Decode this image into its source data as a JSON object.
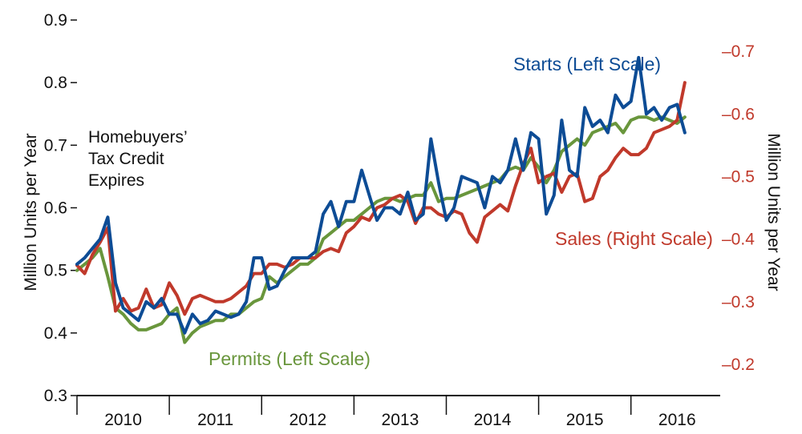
{
  "chart_data": {
    "type": "line",
    "title": "",
    "xlabel": "",
    "ylabel_left": "Million Units per Year",
    "ylabel_right": "Million Units per Year",
    "ylim_left": [
      0.3,
      0.9
    ],
    "yticks_left": [
      0.3,
      0.4,
      0.5,
      0.6,
      0.7,
      0.8,
      0.9
    ],
    "ytick_labels_left": [
      "0.3",
      "0.4",
      "0.5",
      "0.6",
      "0.7",
      "0.8",
      "0.9"
    ],
    "ylim_right": [
      0.15,
      0.75
    ],
    "yticks_right": [
      0.2,
      0.3,
      0.4,
      0.5,
      0.6,
      0.7
    ],
    "ytick_labels_right": [
      "–0.2",
      "–0.3",
      "–0.4",
      "–0.5",
      "–0.6",
      "–0.7"
    ],
    "x_start_month_index": 0,
    "x_end_month_index": 83.6,
    "year_labels": [
      "2010",
      "2011",
      "2012",
      "2013",
      "2014",
      "2015",
      "2016"
    ],
    "annotation": [
      "Homebuyers’",
      "Tax Credit",
      "Expires"
    ],
    "colors": {
      "starts": "#0d4c95",
      "permits": "#69963c",
      "sales": "#c0392b",
      "axis": "#111111"
    },
    "series": [
      {
        "name": "Starts (Left Scale)",
        "key": "starts",
        "axis": "left",
        "month_index_start": 0,
        "values": [
          0.51,
          0.52,
          0.535,
          0.55,
          0.585,
          0.48,
          0.44,
          0.43,
          0.42,
          0.45,
          0.44,
          0.455,
          0.43,
          0.43,
          0.4,
          0.43,
          0.415,
          0.42,
          0.435,
          0.43,
          0.425,
          0.43,
          0.45,
          0.52,
          0.52,
          0.47,
          0.475,
          0.5,
          0.52,
          0.52,
          0.52,
          0.53,
          0.59,
          0.61,
          0.57,
          0.61,
          0.61,
          0.66,
          0.62,
          0.58,
          0.6,
          0.6,
          0.59,
          0.625,
          0.58,
          0.59,
          0.71,
          0.64,
          0.58,
          0.6,
          0.65,
          0.645,
          0.64,
          0.6,
          0.65,
          0.64,
          0.66,
          0.71,
          0.66,
          0.72,
          0.71,
          0.59,
          0.62,
          0.74,
          0.66,
          0.65,
          0.76,
          0.73,
          0.74,
          0.72,
          0.78,
          0.76,
          0.77,
          0.84,
          0.75,
          0.76,
          0.74,
          0.76,
          0.765,
          0.72
        ]
      },
      {
        "name": "Permits (Left Scale)",
        "key": "permits",
        "axis": "left",
        "month_index_start": 0,
        "values": [
          0.5,
          0.51,
          0.52,
          0.535,
          0.49,
          0.44,
          0.43,
          0.415,
          0.405,
          0.405,
          0.41,
          0.415,
          0.43,
          0.44,
          0.385,
          0.4,
          0.41,
          0.415,
          0.42,
          0.42,
          0.43,
          0.43,
          0.44,
          0.45,
          0.455,
          0.49,
          0.48,
          0.49,
          0.5,
          0.51,
          0.51,
          0.52,
          0.55,
          0.56,
          0.57,
          0.58,
          0.58,
          0.59,
          0.6,
          0.61,
          0.615,
          0.615,
          0.61,
          0.615,
          0.62,
          0.62,
          0.64,
          0.61,
          0.615,
          0.615,
          0.62,
          0.625,
          0.63,
          0.635,
          0.64,
          0.645,
          0.66,
          0.665,
          0.66,
          0.68,
          0.665,
          0.64,
          0.66,
          0.69,
          0.7,
          0.71,
          0.7,
          0.72,
          0.725,
          0.73,
          0.735,
          0.72,
          0.74,
          0.745,
          0.745,
          0.74,
          0.745,
          0.74,
          0.735,
          0.745
        ]
      },
      {
        "name": "Sales (Right Scale)",
        "key": "sales",
        "axis": "right",
        "month_index_start": 0,
        "values": [
          0.358,
          0.345,
          0.375,
          0.395,
          0.418,
          0.285,
          0.305,
          0.285,
          0.29,
          0.32,
          0.29,
          0.295,
          0.33,
          0.31,
          0.28,
          0.305,
          0.31,
          0.305,
          0.3,
          0.3,
          0.305,
          0.315,
          0.325,
          0.345,
          0.345,
          0.36,
          0.36,
          0.355,
          0.36,
          0.37,
          0.37,
          0.37,
          0.38,
          0.385,
          0.38,
          0.41,
          0.42,
          0.435,
          0.43,
          0.45,
          0.455,
          0.465,
          0.47,
          0.46,
          0.425,
          0.45,
          0.45,
          0.44,
          0.435,
          0.445,
          0.44,
          0.41,
          0.395,
          0.435,
          0.445,
          0.455,
          0.445,
          0.485,
          0.52,
          0.545,
          0.49,
          0.5,
          0.505,
          0.475,
          0.5,
          0.505,
          0.46,
          0.465,
          0.5,
          0.51,
          0.53,
          0.545,
          0.535,
          0.535,
          0.545,
          0.57,
          0.575,
          0.58,
          0.59,
          0.65
        ]
      }
    ],
    "series_label_keys": [
      "starts",
      "permits",
      "sales"
    ]
  }
}
